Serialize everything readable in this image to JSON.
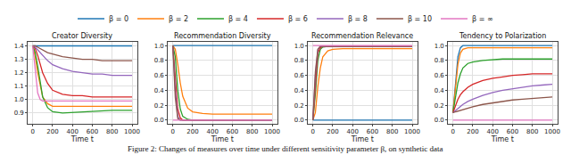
{
  "caption": "Figure 2: Changes of measures over time under different sensitivity parameter β, on synthetic data",
  "chart_data": [
    {
      "type": "line",
      "title": "Creator Diversity",
      "xlabel": "Time t",
      "grid": true,
      "legend": "top",
      "x": [
        0,
        25,
        50,
        75,
        100,
        150,
        200,
        300,
        400,
        500,
        600,
        700,
        800,
        900,
        1000
      ],
      "xlim": [
        -50,
        1050
      ],
      "xticks": [
        0,
        200,
        400,
        600,
        800,
        1000
      ],
      "ylim": [
        0.82,
        1.43
      ],
      "yticks": [
        {
          "value": 0.9,
          "label": "0.9"
        },
        {
          "value": 1,
          "label": "1.0"
        },
        1.1,
        1.2,
        1.3,
        1.4
      ],
      "series": [
        {
          "name": "β = 0",
          "color": "#1f77b4",
          "values": [
            1.4,
            1.4,
            1.4,
            1.4,
            1.4,
            1.4,
            1.4,
            1.4,
            1.4,
            1.4,
            1.4,
            1.4,
            1.4,
            1.4,
            1.4
          ]
        },
        {
          "name": "β = 2",
          "color": "#ff7f0e",
          "values": [
            1.4,
            1.32,
            1.2,
            1.1,
            1.02,
            0.97,
            0.95,
            0.95,
            0.95,
            0.95,
            0.95,
            0.95,
            0.95,
            0.95,
            0.95
          ]
        },
        {
          "name": "β = 4",
          "color": "#2ca02c",
          "values": [
            1.4,
            1.35,
            1.25,
            1.12,
            1.02,
            0.94,
            0.91,
            0.9,
            0.905,
            0.91,
            0.915,
            0.92,
            0.92,
            0.92,
            0.92
          ]
        },
        {
          "name": "β = 6",
          "color": "#d62728",
          "values": [
            1.4,
            1.38,
            1.33,
            1.27,
            1.2,
            1.12,
            1.07,
            1.04,
            1.03,
            1.03,
            1.02,
            1.02,
            1.02,
            1.02,
            1.02
          ]
        },
        {
          "name": "β = 8",
          "color": "#9467bd",
          "values": [
            1.4,
            1.39,
            1.37,
            1.35,
            1.33,
            1.29,
            1.26,
            1.23,
            1.21,
            1.2,
            1.19,
            1.19,
            1.18,
            1.18,
            1.18
          ]
        },
        {
          "name": "β = 10",
          "color": "#8c564b",
          "values": [
            1.4,
            1.4,
            1.39,
            1.38,
            1.37,
            1.35,
            1.34,
            1.32,
            1.31,
            1.3,
            1.3,
            1.29,
            1.29,
            1.29,
            1.29
          ]
        },
        {
          "name": "β = ∞",
          "color": "#e377c2",
          "values": [
            1.4,
            1.2,
            1.05,
            1.0,
            0.99,
            0.99,
            0.99,
            0.99,
            0.99,
            0.99,
            0.99,
            0.99,
            0.99,
            0.99,
            0.99
          ]
        }
      ]
    },
    {
      "type": "line",
      "title": "Recommendation Diversity",
      "xlabel": "Time t",
      "grid": true,
      "x": [
        0,
        25,
        50,
        75,
        100,
        150,
        200,
        300,
        400,
        500,
        600,
        700,
        800,
        900,
        1000
      ],
      "xlim": [
        -50,
        1050
      ],
      "xticks": [
        0,
        200,
        400,
        600,
        800,
        1000
      ],
      "ylim": [
        -0.05,
        1.05
      ],
      "yticks": [
        {
          "value": 0,
          "label": "0.0"
        },
        0.2,
        0.4,
        0.6,
        0.8,
        {
          "value": 1,
          "label": "1.0"
        }
      ],
      "series": [
        {
          "name": "β = 0",
          "color": "#1f77b4",
          "values": [
            1,
            1,
            1,
            1,
            1,
            1,
            1,
            1,
            1,
            1,
            1,
            1,
            1,
            1,
            1
          ]
        },
        {
          "name": "β = 2",
          "color": "#ff7f0e",
          "values": [
            1,
            0.95,
            0.75,
            0.5,
            0.32,
            0.16,
            0.11,
            0.09,
            0.08,
            0.08,
            0.08,
            0.08,
            0.08,
            0.08,
            0.08
          ]
        },
        {
          "name": "β = 4",
          "color": "#2ca02c",
          "values": [
            1,
            0.85,
            0.4,
            0.15,
            0.05,
            0.01,
            0,
            0,
            0,
            0,
            0,
            0,
            0,
            0,
            0
          ]
        },
        {
          "name": "β = 6",
          "color": "#d62728",
          "values": [
            1,
            0.6,
            0.15,
            0.03,
            0,
            0,
            0,
            0,
            0,
            0,
            0,
            0,
            0,
            0,
            0
          ]
        },
        {
          "name": "β = 8",
          "color": "#9467bd",
          "values": [
            1,
            0.4,
            0.05,
            0,
            0,
            0,
            0,
            0,
            0,
            0,
            0,
            0,
            0,
            0,
            0
          ]
        },
        {
          "name": "β = 10",
          "color": "#8c564b",
          "values": [
            1,
            0.3,
            0.02,
            0,
            0,
            0,
            0,
            0,
            0,
            0,
            0,
            0,
            0,
            0,
            0
          ]
        },
        {
          "name": "β = ∞",
          "color": "#e377c2",
          "values": [
            0,
            0,
            0,
            0,
            0,
            0,
            0,
            0,
            0,
            0,
            0,
            0,
            0,
            0,
            0
          ]
        }
      ]
    },
    {
      "type": "line",
      "title": "Recommendation Relevance",
      "xlabel": "Time t",
      "grid": true,
      "x": [
        0,
        25,
        50,
        75,
        100,
        150,
        200,
        300,
        400,
        500,
        600,
        700,
        800,
        900,
        1000
      ],
      "xlim": [
        -50,
        1050
      ],
      "xticks": [
        0,
        200,
        400,
        600,
        800,
        1000
      ],
      "ylim": [
        -0.05,
        1.05
      ],
      "yticks": [
        {
          "value": 0,
          "label": "0.0"
        },
        0.2,
        0.4,
        0.6,
        0.8,
        {
          "value": 1,
          "label": "1.0"
        }
      ],
      "series": [
        {
          "name": "β = 0",
          "color": "#1f77b4",
          "values": [
            0,
            0,
            0,
            0,
            0,
            0,
            0,
            0,
            0,
            0,
            0,
            0,
            0,
            0,
            0
          ]
        },
        {
          "name": "β = 2",
          "color": "#ff7f0e",
          "values": [
            0,
            0.1,
            0.45,
            0.7,
            0.85,
            0.93,
            0.95,
            0.96,
            0.96,
            0.96,
            0.96,
            0.96,
            0.96,
            0.96,
            0.96
          ]
        },
        {
          "name": "β = 4",
          "color": "#2ca02c",
          "values": [
            0,
            0.35,
            0.8,
            0.95,
            0.98,
            0.99,
            0.99,
            0.99,
            0.99,
            0.99,
            0.99,
            0.99,
            0.99,
            0.99,
            0.99
          ]
        },
        {
          "name": "β = 6",
          "color": "#d62728",
          "values": [
            0,
            0.5,
            0.9,
            0.97,
            0.99,
            0.99,
            0.99,
            0.99,
            0.99,
            0.99,
            0.99,
            0.99,
            0.99,
            0.99,
            0.99
          ]
        },
        {
          "name": "β = 8",
          "color": "#9467bd",
          "values": [
            0,
            0.6,
            0.94,
            0.99,
            0.99,
            0.99,
            0.99,
            0.99,
            0.99,
            0.99,
            0.99,
            0.99,
            0.99,
            0.99,
            0.99
          ]
        },
        {
          "name": "β = 10",
          "color": "#8c564b",
          "values": [
            0,
            0.65,
            0.95,
            0.99,
            0.99,
            0.99,
            0.99,
            0.99,
            0.99,
            0.99,
            0.99,
            0.99,
            0.99,
            0.99,
            0.99
          ]
        },
        {
          "name": "β = ∞",
          "color": "#e377c2",
          "values": [
            1,
            1,
            1,
            1,
            1,
            1,
            1,
            1,
            1,
            1,
            1,
            1,
            1,
            1,
            1
          ]
        }
      ]
    },
    {
      "type": "line",
      "title": "Tendency to Polarization",
      "xlabel": "Time t",
      "grid": true,
      "x": [
        0,
        25,
        50,
        75,
        100,
        150,
        200,
        300,
        400,
        500,
        600,
        700,
        800,
        900,
        1000
      ],
      "xlim": [
        -50,
        1050
      ],
      "xticks": [
        0,
        200,
        400,
        600,
        800,
        1000
      ],
      "ylim": [
        -0.05,
        1.05
      ],
      "yticks": [
        {
          "value": 0,
          "label": "0.0"
        },
        0.2,
        0.4,
        0.6,
        0.8,
        {
          "value": 1,
          "label": "1.0"
        }
      ],
      "series": [
        {
          "name": "β = 0",
          "color": "#1f77b4",
          "values": [
            0.1,
            0.5,
            0.85,
            0.97,
            1,
            1,
            1,
            1,
            1,
            1,
            1,
            1,
            1,
            1,
            1
          ]
        },
        {
          "name": "β = 2",
          "color": "#ff7f0e",
          "values": [
            0.1,
            0.4,
            0.75,
            0.9,
            0.95,
            0.97,
            0.97,
            0.97,
            0.97,
            0.97,
            0.97,
            0.97,
            0.97,
            0.97,
            0.97
          ]
        },
        {
          "name": "β = 4",
          "color": "#2ca02c",
          "values": [
            0.1,
            0.3,
            0.5,
            0.62,
            0.7,
            0.76,
            0.78,
            0.8,
            0.81,
            0.82,
            0.82,
            0.82,
            0.82,
            0.82,
            0.82
          ]
        },
        {
          "name": "β = 6",
          "color": "#d62728",
          "values": [
            0.1,
            0.2,
            0.28,
            0.34,
            0.38,
            0.44,
            0.48,
            0.53,
            0.56,
            0.58,
            0.6,
            0.61,
            0.62,
            0.62,
            0.62
          ]
        },
        {
          "name": "β = 8",
          "color": "#9467bd",
          "values": [
            0.1,
            0.13,
            0.16,
            0.19,
            0.21,
            0.25,
            0.28,
            0.33,
            0.37,
            0.4,
            0.42,
            0.44,
            0.46,
            0.47,
            0.48
          ]
        },
        {
          "name": "β = 10",
          "color": "#8c564b",
          "values": [
            0.1,
            0.11,
            0.12,
            0.13,
            0.14,
            0.16,
            0.18,
            0.21,
            0.23,
            0.25,
            0.27,
            0.28,
            0.29,
            0.3,
            0.31
          ]
        },
        {
          "name": "β = ∞",
          "color": "#e377c2",
          "values": [
            0,
            0,
            0,
            0,
            0,
            0,
            0,
            0,
            0,
            0,
            0,
            0,
            0,
            0,
            0
          ]
        }
      ]
    }
  ]
}
